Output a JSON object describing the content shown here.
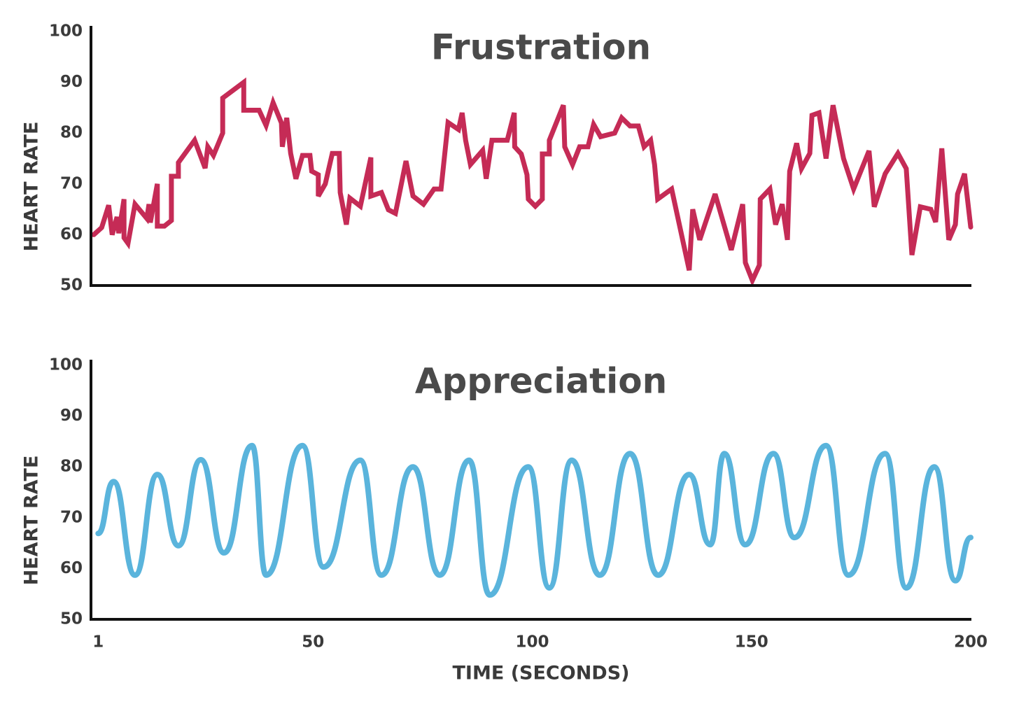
{
  "chart_data": [
    {
      "type": "line",
      "title": "Frustration",
      "y_label": "HEART RATE",
      "color": "#c52b56",
      "xlim": [
        0,
        200
      ],
      "ylim": [
        50,
        100
      ],
      "yticks": [
        50,
        60,
        70,
        80,
        90,
        100
      ],
      "x": [
        0,
        1.8,
        3.4,
        4.2,
        5.3,
        5.7,
        6.9,
        6.9,
        7.8,
        9.4,
        12.1,
        12.6,
        12.9,
        14.5,
        14.5,
        16.1,
        17.7,
        17.7,
        19.3,
        19.3,
        23,
        25.4,
        26,
        27.3,
        29.4,
        29.4,
        34.2,
        34.2,
        37.7,
        39.3,
        40.9,
        42.8,
        43,
        44,
        44.9,
        46.1,
        47.6,
        49.3,
        49.7,
        51.2,
        51.2,
        52.8,
        54.4,
        56,
        56.2,
        57.6,
        58.4,
        60.8,
        63.2,
        63.2,
        65.6,
        67.2,
        68.8,
        71.2,
        72.8,
        75.2,
        77.6,
        79.2,
        80.8,
        83.2,
        84,
        84.8,
        85.9,
        88.7,
        89.5,
        90.8,
        94.3,
        95.9,
        96,
        97.5,
        98.8,
        99.1,
        100.7,
        102.3,
        102.3,
        103.9,
        103.9,
        107.1,
        107.4,
        109.2,
        110.8,
        112.7,
        114,
        115.6,
        118.8,
        120.4,
        122.3,
        124.2,
        125.5,
        127,
        127.9,
        128.6,
        131.8,
        135.8,
        136.6,
        138.2,
        141.7,
        145.4,
        148,
        148.6,
        150.2,
        151.8,
        152,
        154.2,
        155.5,
        157,
        158.2,
        158.7,
        160.3,
        161.4,
        163.3,
        163.8,
        165.4,
        167,
        168.6,
        171,
        173.3,
        176.8,
        178,
        180.5,
        183.4,
        185.3,
        186.6,
        188.5,
        190.9,
        192,
        193.4,
        195,
        196.5,
        197,
        198.6,
        200
      ],
      "values": [
        60,
        61.4,
        65.8,
        60,
        63.5,
        60.3,
        67,
        59.4,
        58.3,
        66,
        63.2,
        66,
        62.4,
        70,
        61.7,
        61.7,
        62.8,
        71.5,
        71.5,
        74.2,
        78.6,
        73.1,
        77.3,
        75.6,
        80,
        86.9,
        90,
        84.5,
        84.5,
        81.5,
        86,
        82,
        77.3,
        83,
        76,
        71,
        75.6,
        75.6,
        72.5,
        71.8,
        67.6,
        70,
        76,
        76,
        68.3,
        62,
        67.2,
        65.6,
        75.2,
        67.6,
        68.3,
        64.9,
        64.2,
        74.5,
        67.6,
        66,
        69,
        69,
        82.1,
        80.7,
        84,
        78.6,
        73.8,
        76.6,
        71,
        78.6,
        78.6,
        84,
        77.3,
        75.9,
        71.8,
        67,
        65.6,
        67,
        75.9,
        75.9,
        78.6,
        85.5,
        77.3,
        73.8,
        77.3,
        77.3,
        81.7,
        79.3,
        80,
        83,
        81.4,
        81.4,
        77.3,
        78.6,
        73.8,
        67,
        69,
        53,
        65,
        59,
        68,
        57,
        66,
        54.5,
        51,
        54,
        67,
        69,
        62,
        66,
        59,
        72.5,
        78,
        73,
        76,
        83.5,
        84,
        75,
        85.5,
        75,
        69,
        76.5,
        65.5,
        72,
        76,
        73,
        56,
        65.5,
        65,
        62.5,
        77,
        59,
        62,
        68,
        72,
        61.5
      ]
    },
    {
      "type": "line",
      "smooth": true,
      "title": "Appreciation",
      "y_label": "HEART RATE",
      "x_label": "TIME (SECONDS)",
      "color": "#5ab4dc",
      "xlim": [
        0,
        200
      ],
      "xticks": [
        1,
        50,
        100,
        150,
        200
      ],
      "ylim": [
        50,
        100
      ],
      "yticks": [
        50,
        60,
        70,
        80,
        90,
        100
      ],
      "x": [
        1,
        4.5,
        9.4,
        14.5,
        19.3,
        24.4,
        29.7,
        36.1,
        39.3,
        47.6,
        52.4,
        60.8,
        65.6,
        72.8,
        78.9,
        85.6,
        90.3,
        99.1,
        103.9,
        109,
        115.4,
        122.3,
        128.7,
        135.8,
        140.6,
        143.8,
        148.6,
        155,
        159.8,
        167,
        172.1,
        180.5,
        185.3,
        191.7,
        196.5,
        200
      ],
      "values": [
        66.9,
        77.1,
        58.7,
        78.5,
        64.5,
        81.4,
        63.1,
        84.2,
        58.7,
        84.2,
        60.3,
        81.3,
        58.7,
        80,
        58.7,
        81.3,
        54.8,
        80,
        56.2,
        81.3,
        58.7,
        82.6,
        58.7,
        78.5,
        64.7,
        82.6,
        64.7,
        82.6,
        66.1,
        84.2,
        58.7,
        82.6,
        56.2,
        80,
        57.6,
        66.1
      ]
    }
  ]
}
